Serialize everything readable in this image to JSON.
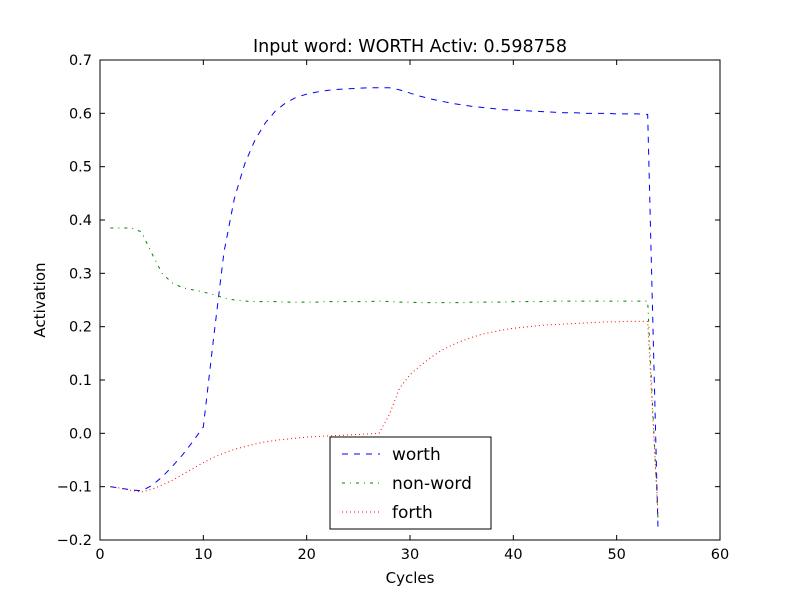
{
  "chart_data": {
    "type": "line",
    "title": "Input word: WORTH Activ: 0.598758",
    "xlabel": "Cycles",
    "ylabel": "Activation",
    "xlim": [
      0,
      60
    ],
    "ylim": [
      -0.2,
      0.7
    ],
    "xticks": [
      0,
      10,
      20,
      30,
      40,
      50,
      60
    ],
    "yticks": [
      -0.2,
      -0.1,
      0.0,
      0.1,
      0.2,
      0.3,
      0.4,
      0.5,
      0.6,
      0.7
    ],
    "xtick_labels": [
      "0",
      "10",
      "20",
      "30",
      "40",
      "50",
      "60"
    ],
    "ytick_labels": [
      "−0.2",
      "−0.1",
      "0.0",
      "0.1",
      "0.2",
      "0.3",
      "0.4",
      "0.5",
      "0.6",
      "0.7"
    ],
    "grid": false,
    "legend_position": "lower-center",
    "series": [
      {
        "name": "worth",
        "color": "#0000ff",
        "style": "dashed",
        "x": [
          1,
          2,
          3,
          4,
          5,
          6,
          7,
          8,
          9,
          10,
          11,
          12,
          13,
          14,
          15,
          16,
          17,
          18,
          19,
          20,
          21,
          22,
          23,
          24,
          25,
          26,
          27,
          28,
          29,
          30,
          31,
          32,
          33,
          34,
          35,
          36,
          37,
          38,
          39,
          40,
          41,
          42,
          43,
          44,
          45,
          46,
          47,
          48,
          49,
          50,
          51,
          52,
          53,
          54
        ],
        "y": [
          -0.1,
          -0.103,
          -0.106,
          -0.108,
          -0.098,
          -0.082,
          -0.062,
          -0.04,
          -0.015,
          0.012,
          0.18,
          0.34,
          0.44,
          0.505,
          0.55,
          0.582,
          0.605,
          0.62,
          0.63,
          0.636,
          0.64,
          0.643,
          0.645,
          0.646,
          0.647,
          0.648,
          0.648,
          0.648,
          0.644,
          0.638,
          0.632,
          0.627,
          0.623,
          0.619,
          0.616,
          0.613,
          0.611,
          0.609,
          0.607,
          0.606,
          0.605,
          0.604,
          0.603,
          0.602,
          0.601,
          0.601,
          0.6,
          0.6,
          0.6,
          0.599,
          0.599,
          0.599,
          0.598,
          -0.18
        ]
      },
      {
        "name": "non-word",
        "color": "#008000",
        "style": "dashdot",
        "x": [
          1,
          2,
          3,
          4,
          5,
          6,
          7,
          8,
          9,
          10,
          11,
          12,
          13,
          14,
          15,
          16,
          17,
          18,
          19,
          20,
          21,
          22,
          23,
          24,
          25,
          26,
          27,
          28,
          29,
          30,
          31,
          32,
          33,
          34,
          35,
          36,
          37,
          38,
          39,
          40,
          41,
          42,
          43,
          44,
          45,
          46,
          47,
          48,
          49,
          50,
          51,
          52,
          53,
          54
        ],
        "y": [
          0.385,
          0.385,
          0.385,
          0.378,
          0.338,
          0.3,
          0.282,
          0.273,
          0.269,
          0.265,
          0.26,
          0.254,
          0.25,
          0.248,
          0.247,
          0.247,
          0.247,
          0.246,
          0.246,
          0.246,
          0.246,
          0.247,
          0.247,
          0.247,
          0.247,
          0.247,
          0.248,
          0.247,
          0.246,
          0.246,
          0.245,
          0.245,
          0.245,
          0.245,
          0.245,
          0.246,
          0.246,
          0.246,
          0.246,
          0.247,
          0.247,
          0.247,
          0.247,
          0.248,
          0.248,
          0.248,
          0.248,
          0.248,
          0.248,
          0.248,
          0.248,
          0.248,
          0.248,
          -0.16
        ]
      },
      {
        "name": "forth",
        "color": "#ff0000",
        "style": "dotted",
        "x": [
          1,
          2,
          3,
          4,
          5,
          6,
          7,
          8,
          9,
          10,
          11,
          12,
          13,
          14,
          15,
          16,
          17,
          18,
          19,
          20,
          21,
          22,
          23,
          24,
          25,
          26,
          27,
          28,
          29,
          30,
          31,
          32,
          33,
          34,
          35,
          36,
          37,
          38,
          39,
          40,
          41,
          42,
          43,
          44,
          45,
          46,
          47,
          48,
          49,
          50,
          51,
          52,
          53,
          54
        ],
        "y": [
          -0.1,
          -0.103,
          -0.107,
          -0.11,
          -0.105,
          -0.097,
          -0.088,
          -0.077,
          -0.066,
          -0.055,
          -0.045,
          -0.037,
          -0.03,
          -0.025,
          -0.02,
          -0.016,
          -0.013,
          -0.011,
          -0.009,
          -0.007,
          -0.006,
          -0.005,
          -0.004,
          -0.003,
          -0.002,
          -0.001,
          0.0,
          0.035,
          0.085,
          0.11,
          0.127,
          0.142,
          0.155,
          0.165,
          0.173,
          0.18,
          0.186,
          0.19,
          0.194,
          0.197,
          0.199,
          0.201,
          0.203,
          0.204,
          0.205,
          0.206,
          0.207,
          0.208,
          0.209,
          0.209,
          0.21,
          0.21,
          0.21,
          -0.15
        ]
      }
    ]
  }
}
